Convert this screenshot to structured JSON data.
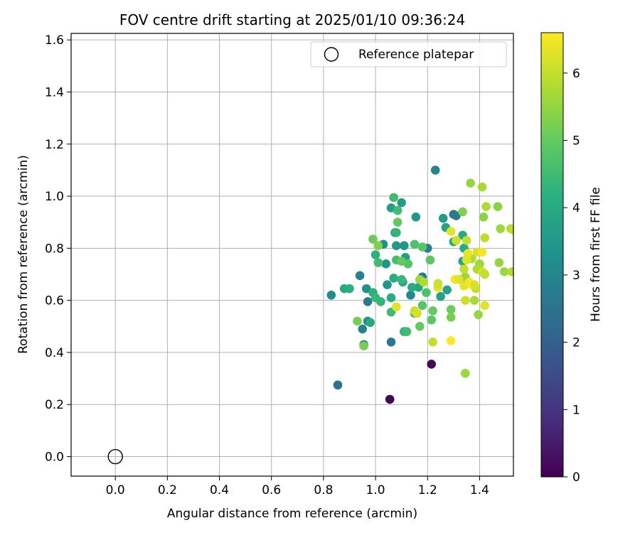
{
  "chart_data": {
    "type": "scatter",
    "title": "FOV centre drift starting at 2025/01/10 09:36:24",
    "xlabel": "Angular distance from reference (arcmin)",
    "ylabel": "Rotation from reference (arcmin)",
    "xlim": [
      -0.17,
      1.53
    ],
    "ylim": [
      -0.075,
      1.625
    ],
    "xticks": [
      "0.0",
      "0.2",
      "0.4",
      "0.6",
      "0.8",
      "1.0",
      "1.2",
      "1.4"
    ],
    "yticks": [
      "0.0",
      "0.2",
      "0.4",
      "0.6",
      "0.8",
      "1.0",
      "1.2",
      "1.4",
      "1.6"
    ],
    "grid": true,
    "legend": {
      "position": "top-right",
      "entries": [
        "Reference platepar"
      ]
    },
    "colorbar": {
      "label": "Hours from first FF file",
      "range": [
        0,
        6.6
      ],
      "ticks": [
        "0",
        "1",
        "2",
        "3",
        "4",
        "5",
        "6"
      ],
      "colormap": "viridis"
    },
    "reference_point": {
      "name": "Reference platepar",
      "x": 0.0,
      "y": 0.0
    },
    "series": [
      {
        "points": [
          [
            1.055,
            0.22,
            0.1
          ],
          [
            1.215,
            0.355,
            0.15
          ],
          [
            0.855,
            0.275,
            2.4
          ],
          [
            1.06,
            0.44,
            2.6
          ],
          [
            0.955,
            0.43,
            2.8
          ],
          [
            0.95,
            0.49,
            2.9
          ],
          [
            0.97,
            0.595,
            2.7
          ],
          [
            0.94,
            0.695,
            2.9
          ],
          [
            1.23,
            1.1,
            2.9
          ],
          [
            1.3,
            0.93,
            2.5
          ],
          [
            1.31,
            0.925,
            2.7
          ],
          [
            1.18,
            0.69,
            2.7
          ],
          [
            1.2,
            0.8,
            2.8
          ],
          [
            1.135,
            0.62,
            3.0
          ],
          [
            0.83,
            0.62,
            3.2
          ],
          [
            0.97,
            0.52,
            3.2
          ],
          [
            0.965,
            0.645,
            3.3
          ],
          [
            1.045,
            0.66,
            3.4
          ],
          [
            1.04,
            0.74,
            3.4
          ],
          [
            1.03,
            0.815,
            3.3
          ],
          [
            1.08,
            0.81,
            3.5
          ],
          [
            1.075,
            0.86,
            3.6
          ],
          [
            1.11,
            0.81,
            3.5
          ],
          [
            1.115,
            0.765,
            3.7
          ],
          [
            1.06,
            0.955,
            3.7
          ],
          [
            1.1,
            0.975,
            3.6
          ],
          [
            1.155,
            0.92,
            3.5
          ],
          [
            1.26,
            0.915,
            3.6
          ],
          [
            1.27,
            0.88,
            3.8
          ],
          [
            1.3,
            0.825,
            4.0
          ],
          [
            1.335,
            0.85,
            4.0
          ],
          [
            1.335,
            0.75,
            3.9
          ],
          [
            1.34,
            0.8,
            4.0
          ],
          [
            1.275,
            0.64,
            3.8
          ],
          [
            1.25,
            0.615,
            3.8
          ],
          [
            1.165,
            0.65,
            3.9
          ],
          [
            1.14,
            0.65,
            4.1
          ],
          [
            1.105,
            0.67,
            4.0
          ],
          [
            1.07,
            0.685,
            4.1
          ],
          [
            0.88,
            0.645,
            4.0
          ],
          [
            0.9,
            0.645,
            4.2
          ],
          [
            0.98,
            0.515,
            4.0
          ],
          [
            0.99,
            0.63,
            4.2
          ],
          [
            1.0,
            0.61,
            4.4
          ],
          [
            1.02,
            0.595,
            4.3
          ],
          [
            1.06,
            0.61,
            4.1
          ],
          [
            1.0,
            0.775,
            4.2
          ],
          [
            1.01,
            0.745,
            4.5
          ],
          [
            1.08,
            0.755,
            4.6
          ],
          [
            1.085,
            0.945,
            4.5
          ],
          [
            1.07,
            0.995,
            4.5
          ],
          [
            1.08,
            0.86,
            4.3
          ],
          [
            1.1,
            0.68,
            4.4
          ],
          [
            1.11,
            0.48,
            4.2
          ],
          [
            1.12,
            0.48,
            4.5
          ],
          [
            1.06,
            0.555,
            4.5
          ],
          [
            1.15,
            0.815,
            4.7
          ],
          [
            1.18,
            0.805,
            4.8
          ],
          [
            1.195,
            0.63,
            4.7
          ],
          [
            1.18,
            0.58,
            4.8
          ],
          [
            1.15,
            0.55,
            4.6
          ],
          [
            1.125,
            0.74,
            4.8
          ],
          [
            1.21,
            0.755,
            4.9
          ],
          [
            1.215,
            0.525,
            4.9
          ],
          [
            1.22,
            0.56,
            5.0
          ],
          [
            1.17,
            0.5,
            5.0
          ],
          [
            1.1,
            0.75,
            5.0
          ],
          [
            1.085,
            0.9,
            5.0
          ],
          [
            0.99,
            0.835,
            5.1
          ],
          [
            1.01,
            0.81,
            5.3
          ],
          [
            0.93,
            0.52,
            5.2
          ],
          [
            0.955,
            0.425,
            5.2
          ],
          [
            1.29,
            0.565,
            5.1
          ],
          [
            1.29,
            0.535,
            5.2
          ],
          [
            1.335,
            0.94,
            5.3
          ],
          [
            1.365,
            1.05,
            5.5
          ],
          [
            1.415,
            0.92,
            5.4
          ],
          [
            1.47,
            0.96,
            5.4
          ],
          [
            1.41,
            1.035,
            5.7
          ],
          [
            1.425,
            0.96,
            5.8
          ],
          [
            1.42,
            0.84,
            5.9
          ],
          [
            1.48,
            0.875,
            5.6
          ],
          [
            1.52,
            0.875,
            5.8
          ],
          [
            1.53,
            0.87,
            6.0
          ],
          [
            1.475,
            0.745,
            5.5
          ],
          [
            1.495,
            0.71,
            5.6
          ],
          [
            1.525,
            0.71,
            5.8
          ],
          [
            1.4,
            0.74,
            5.6
          ],
          [
            1.395,
            0.545,
            5.5
          ],
          [
            1.345,
            0.32,
            5.6
          ],
          [
            1.33,
            0.68,
            5.5
          ],
          [
            1.345,
            0.69,
            5.6
          ],
          [
            1.37,
            0.76,
            5.8
          ],
          [
            1.34,
            0.72,
            6.0
          ],
          [
            1.39,
            0.72,
            5.8
          ],
          [
            1.41,
            0.71,
            6.1
          ],
          [
            1.42,
            0.7,
            6.0
          ],
          [
            1.385,
            0.645,
            6.0
          ],
          [
            1.38,
            0.6,
            5.7
          ],
          [
            1.345,
            0.6,
            6.1
          ],
          [
            1.35,
            0.83,
            6.0
          ],
          [
            1.31,
            0.83,
            6.1
          ],
          [
            1.29,
            0.865,
            6.3
          ],
          [
            1.39,
            0.785,
            6.2
          ],
          [
            1.41,
            0.785,
            6.5
          ],
          [
            1.355,
            0.78,
            6.4
          ],
          [
            1.35,
            0.755,
            6.3
          ],
          [
            1.36,
            0.67,
            6.5
          ],
          [
            1.37,
            0.66,
            6.6
          ],
          [
            1.34,
            0.655,
            6.4
          ],
          [
            1.38,
            0.66,
            6.2
          ],
          [
            1.305,
            0.68,
            6.5
          ],
          [
            1.32,
            0.68,
            6.3
          ],
          [
            1.42,
            0.58,
            6.3
          ],
          [
            1.29,
            0.445,
            6.6
          ],
          [
            1.24,
            0.65,
            6.3
          ],
          [
            1.24,
            0.665,
            6.1
          ],
          [
            1.22,
            0.44,
            6.0
          ],
          [
            1.15,
            0.56,
            6.1
          ],
          [
            1.16,
            0.55,
            6.2
          ],
          [
            1.08,
            0.575,
            6.3
          ],
          [
            1.17,
            0.68,
            5.6
          ],
          [
            1.185,
            0.67,
            5.8
          ]
        ]
      }
    ]
  }
}
